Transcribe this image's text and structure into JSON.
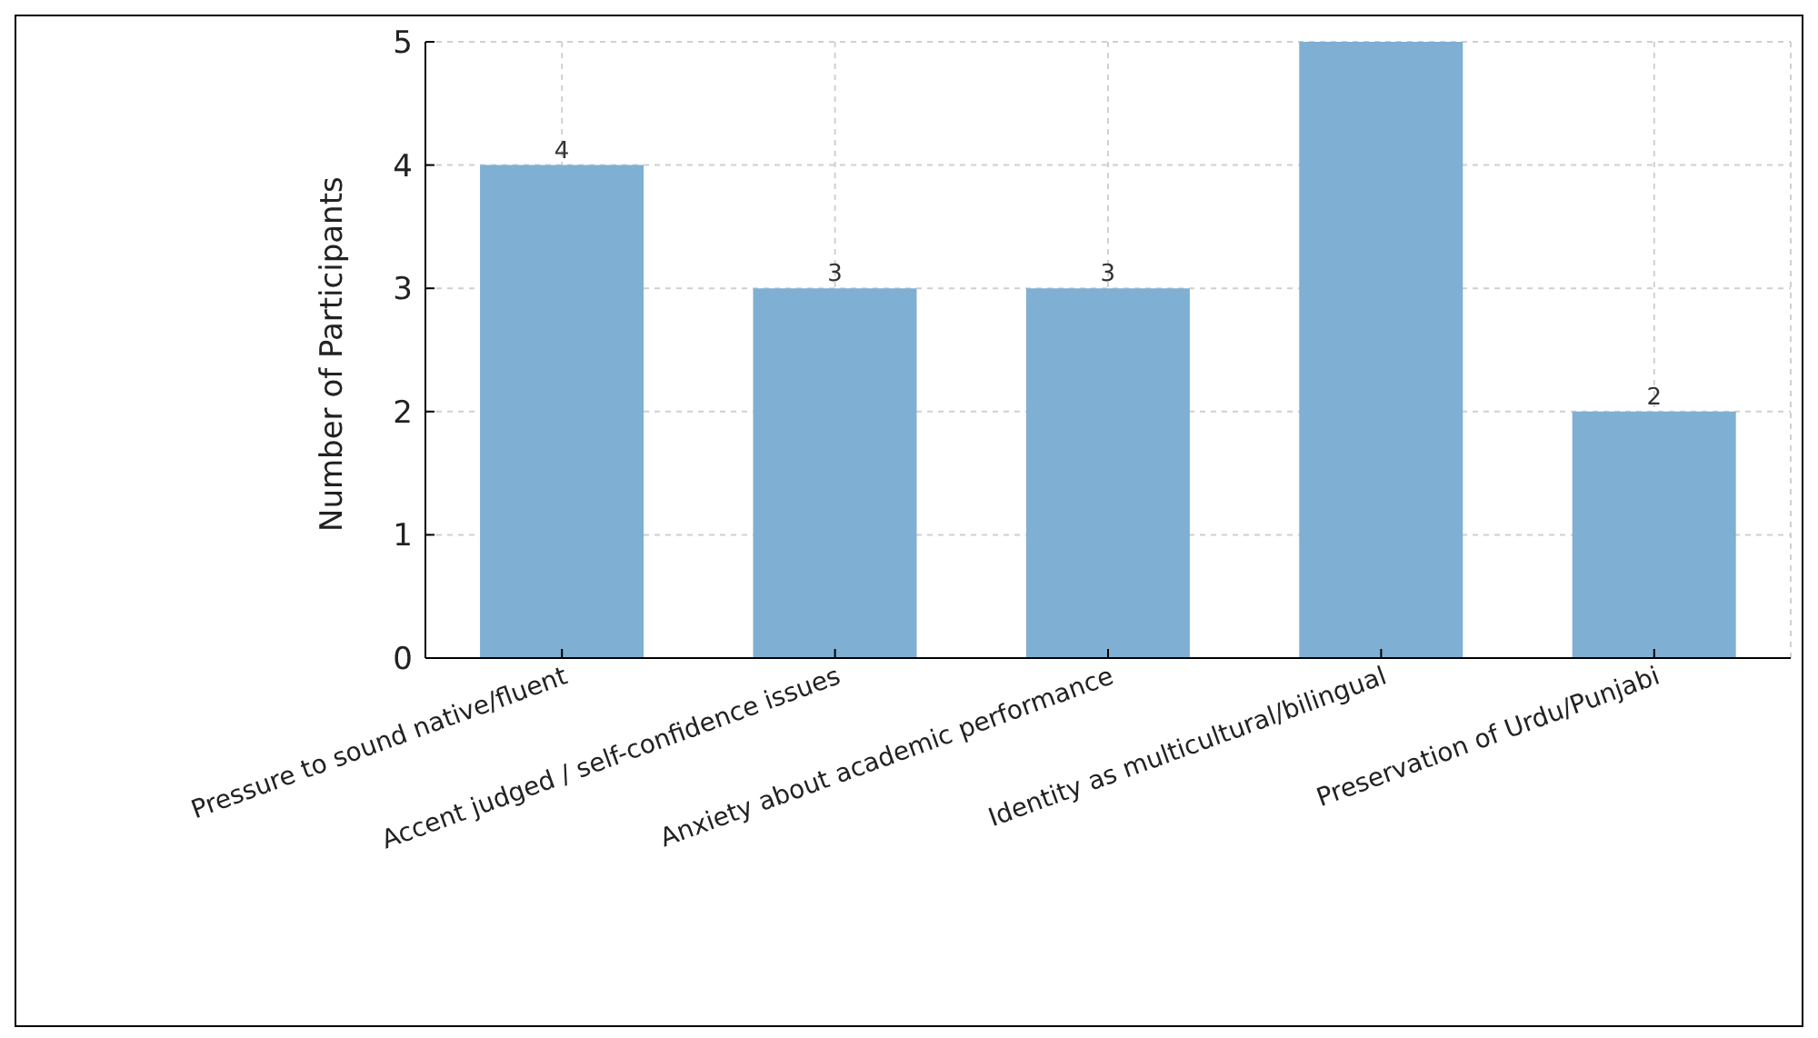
{
  "chart_data": {
    "type": "bar",
    "categories": [
      "Pressure to sound native/fluent",
      "Accent judged / self-confidence issues",
      "Anxiety about academic performance",
      "Identity as multicultural/bilingual",
      "Preservation of Urdu/Punjabi"
    ],
    "values": [
      4,
      3,
      3,
      5,
      2
    ],
    "value_labels": [
      "4",
      "3",
      "3",
      null,
      "2"
    ],
    "color": "#7fafd3",
    "ylabel": "Number of Participants",
    "ylim": [
      0,
      5
    ],
    "yticks": [
      0,
      1,
      2,
      3,
      4,
      5
    ],
    "grid": true
  }
}
